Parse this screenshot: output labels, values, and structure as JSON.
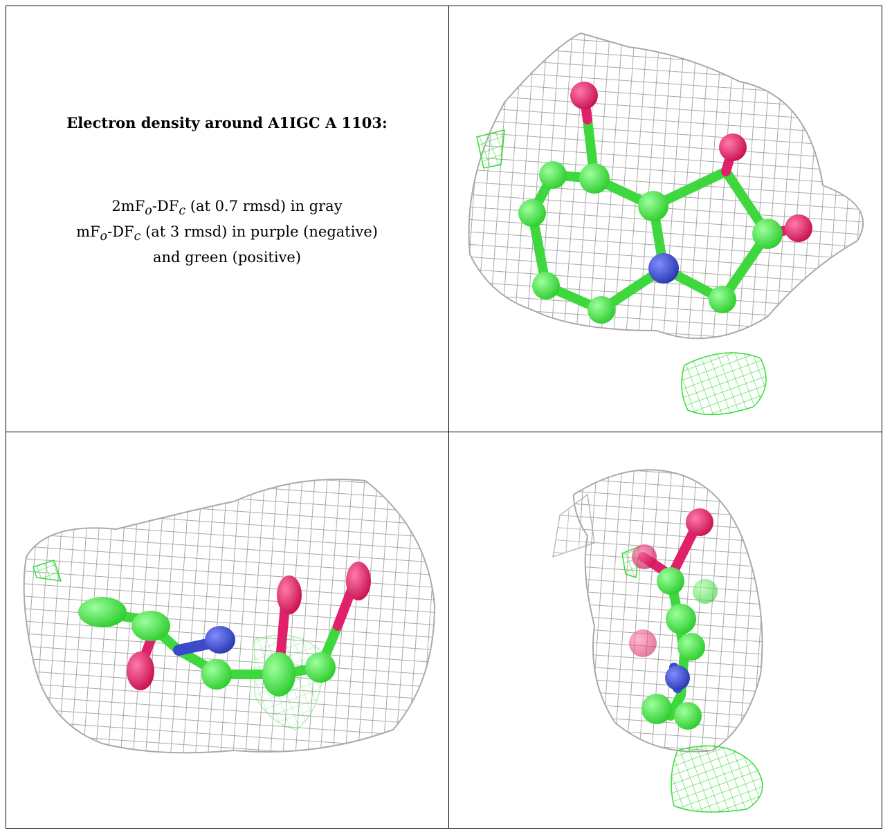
{
  "caption": {
    "title": "Electron density around A1IGC A 1103:",
    "line1_prefix": "2mF",
    "line1_sub_o": "o",
    "line1_mid": "-DF",
    "line1_sub_c": "c",
    "line1_suffix": " (at 0.7 rmsd) in gray",
    "line2_prefix": "mF",
    "line2_sub_o": "o",
    "line2_mid": "-DF",
    "line2_sub_c": "c",
    "line2_suffix": " (at 3 rmsd) in purple (negative)",
    "line3": "and green (positive)"
  },
  "colors": {
    "mesh_gray": "#a9a9a9",
    "mesh_green": "#33dd33",
    "carbon_green": "#44ee44",
    "oxygen_pink": "#e0206a",
    "nitrogen_blue": "#3a4ac8"
  },
  "panels": [
    {
      "name": "top-right-view",
      "view": "face-on"
    },
    {
      "name": "bottom-left-view",
      "view": "side"
    },
    {
      "name": "bottom-right-view",
      "view": "edge-on"
    }
  ]
}
